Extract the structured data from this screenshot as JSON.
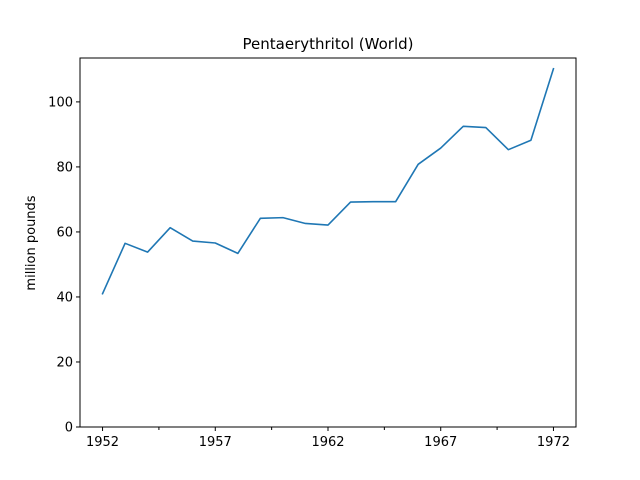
{
  "chart_data": {
    "type": "line",
    "title": "Pentaerythritol (World)",
    "xlabel": "",
    "ylabel": "million pounds",
    "xlim": [
      1951,
      1973
    ],
    "ylim": [
      0,
      113.5
    ],
    "x_ticks": [
      1952,
      1957,
      1962,
      1967,
      1972
    ],
    "x_minor_ticks": [
      1954.5,
      1959.5,
      1964.5,
      1969.5
    ],
    "y_ticks": [
      0,
      20,
      40,
      60,
      80,
      100
    ],
    "grid": false,
    "legend": "none",
    "series": [
      {
        "color": "#1f77b4",
        "x": [
          1952,
          1953,
          1954,
          1955,
          1956,
          1957,
          1958,
          1959,
          1960,
          1961,
          1962,
          1963,
          1964,
          1965,
          1966,
          1967,
          1968,
          1969,
          1970,
          1971,
          1972
        ],
        "values": [
          41,
          56.5,
          53.8,
          61.3,
          57.2,
          56.6,
          53.4,
          64.2,
          64.4,
          62.6,
          62.1,
          69.2,
          69.3,
          69.3,
          80.8,
          85.8,
          92.5,
          92.1,
          85.3,
          88.2,
          110.2
        ]
      }
    ]
  }
}
